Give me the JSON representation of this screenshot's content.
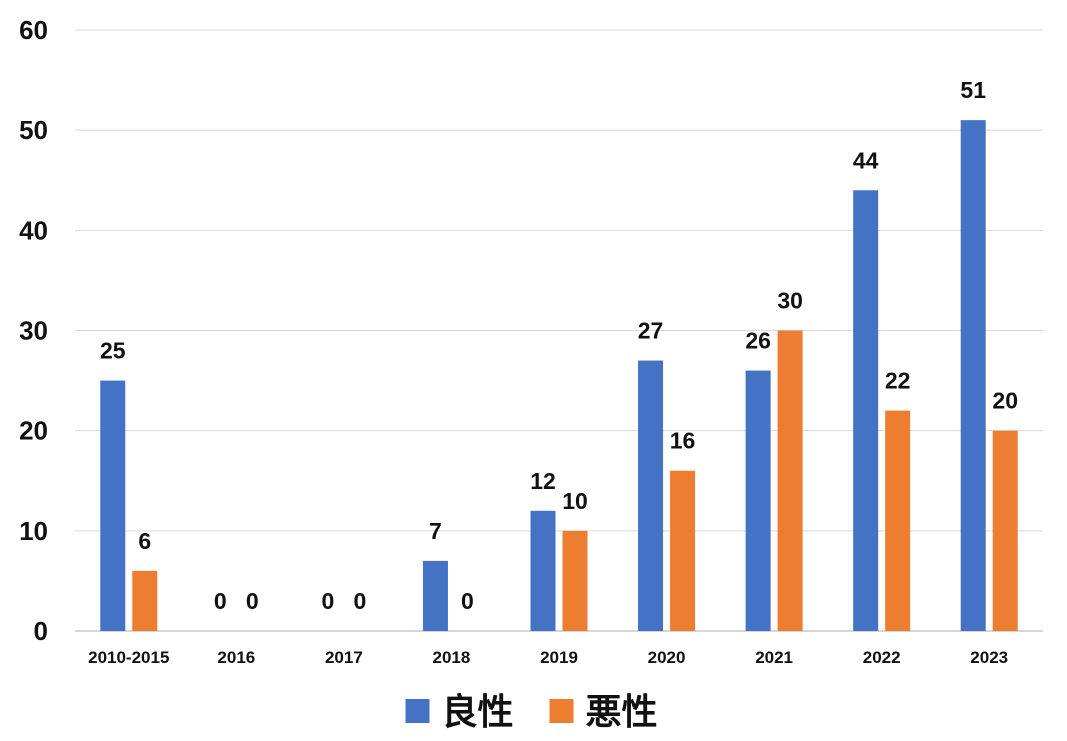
{
  "chart_data": {
    "type": "bar",
    "title": "",
    "xlabel": "",
    "ylabel": "",
    "categories": [
      "2010-2015",
      "2016",
      "2017",
      "2018",
      "2019",
      "2020",
      "2021",
      "2022",
      "2023"
    ],
    "series": [
      {
        "name": "良性",
        "color": "#4472C4",
        "values": [
          25,
          0,
          0,
          7,
          12,
          27,
          26,
          44,
          51
        ]
      },
      {
        "name": "悪性",
        "color": "#ED7D31",
        "values": [
          6,
          0,
          0,
          0,
          10,
          16,
          30,
          22,
          20
        ]
      }
    ],
    "ylim": [
      0,
      60
    ],
    "yticks": [
      0,
      10,
      20,
      30,
      40,
      50,
      60
    ],
    "grid": true,
    "data_labels": true,
    "legend_position": "bottom"
  }
}
